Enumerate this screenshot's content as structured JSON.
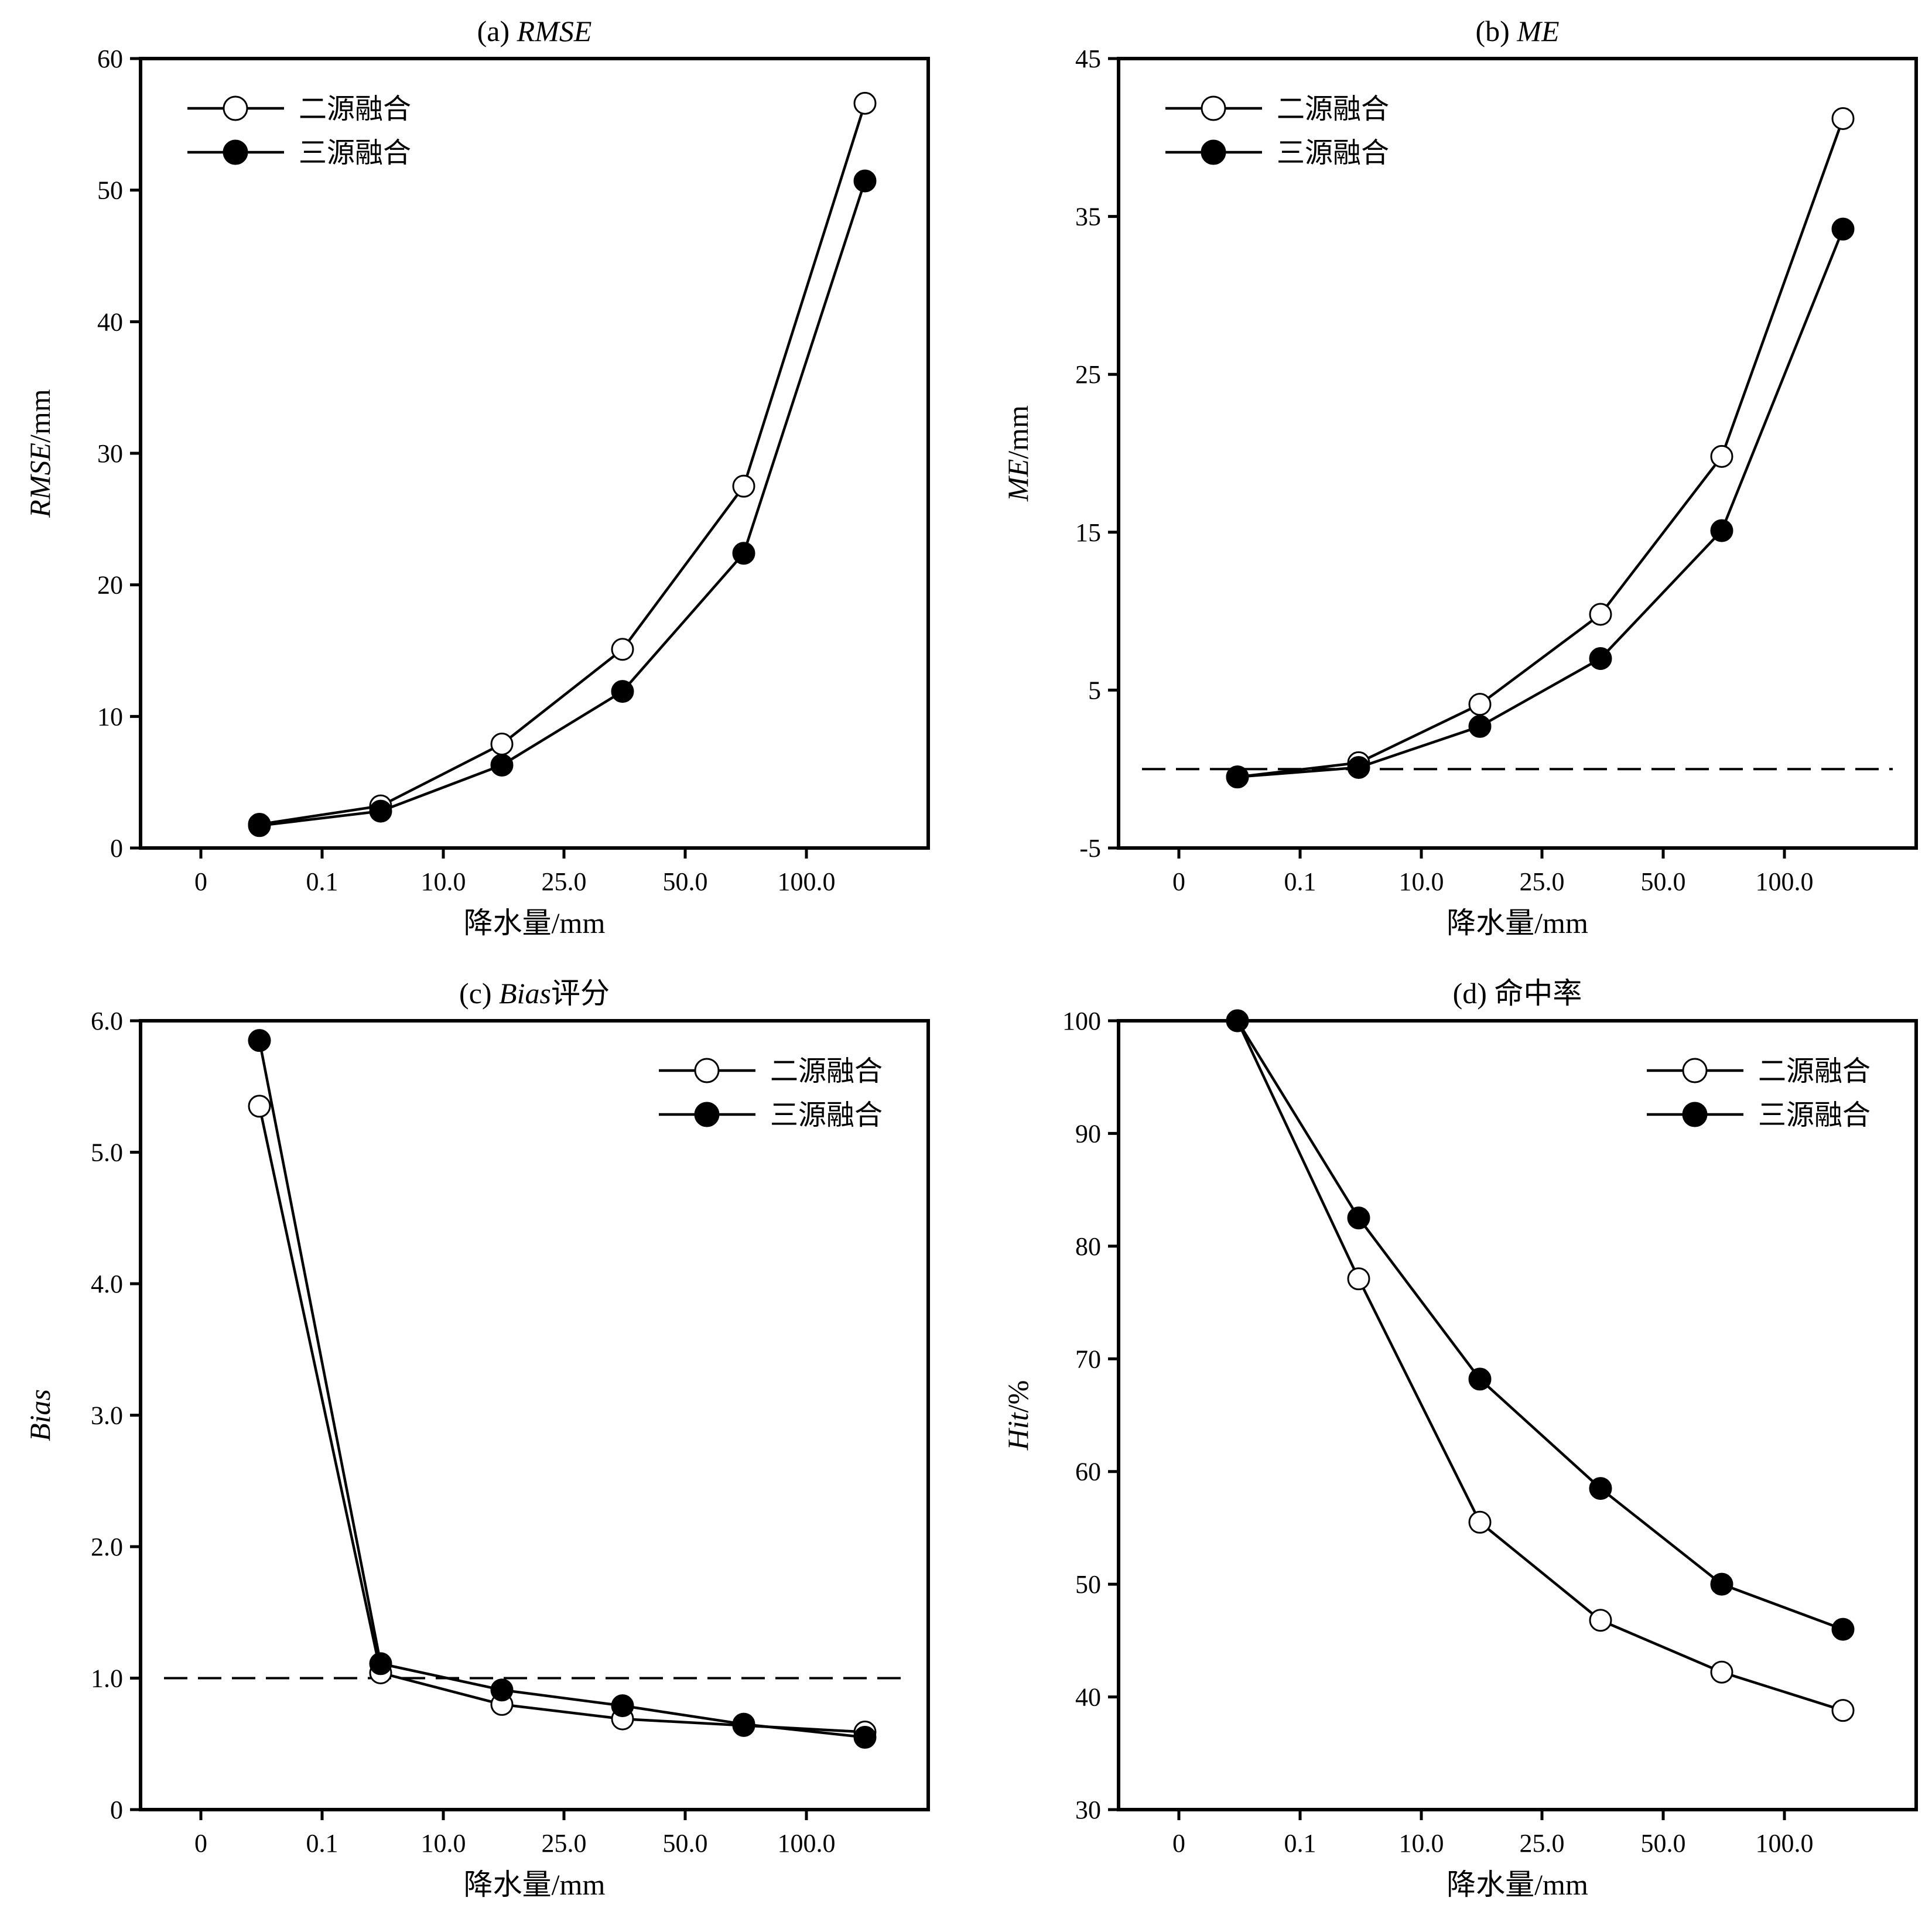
{
  "chart_data": [
    {
      "type": "line",
      "title": "(a) RMSE",
      "title_prefix": "(a) ",
      "title_italic": "RMSE",
      "title_suffix": "",
      "ylabel_italic": "RMSE",
      "ylabel_suffix": "/mm",
      "xlabel": "降水量/mm",
      "x_ticks": [
        "0",
        "0.1",
        "10.0",
        "25.0",
        "50.0",
        "100.0"
      ],
      "ylim": [
        0,
        60
      ],
      "y_ticks": [
        0,
        10,
        20,
        30,
        40,
        50,
        60
      ],
      "y_tick_labels": [
        "0",
        "10",
        "20",
        "30",
        "40",
        "50",
        "60"
      ],
      "legend_position": "top-left",
      "reference_line": null,
      "series": [
        {
          "name": "二源融合",
          "marker": "open-circle",
          "values": [
            1.8,
            3.2,
            7.9,
            15.1,
            27.5,
            56.6
          ]
        },
        {
          "name": "三源融合",
          "marker": "filled-circle",
          "values": [
            1.7,
            2.8,
            6.3,
            11.9,
            22.4,
            50.7
          ]
        }
      ]
    },
    {
      "type": "line",
      "title": "(b) ME",
      "title_prefix": "(b) ",
      "title_italic": "ME",
      "title_suffix": "",
      "ylabel_italic": "ME",
      "ylabel_suffix": "/mm",
      "xlabel": "降水量/mm",
      "x_ticks": [
        "0",
        "0.1",
        "10.0",
        "25.0",
        "50.0",
        "100.0"
      ],
      "ylim": [
        -5,
        45
      ],
      "y_ticks": [
        -5,
        5,
        15,
        25,
        35,
        45
      ],
      "y_tick_labels": [
        "-5",
        "5",
        "15",
        "25",
        "35",
        "45"
      ],
      "legend_position": "top-left",
      "reference_line": 0,
      "series": [
        {
          "name": "二源融合",
          "marker": "open-circle",
          "values": [
            -0.5,
            0.4,
            4.1,
            9.8,
            19.8,
            41.2
          ]
        },
        {
          "name": "三源融合",
          "marker": "filled-circle",
          "values": [
            -0.5,
            0.1,
            2.7,
            7.0,
            15.1,
            34.2
          ]
        }
      ]
    },
    {
      "type": "line",
      "title": "(c) Bias评分",
      "title_prefix": "(c) ",
      "title_italic": "Bias",
      "title_suffix": "评分",
      "ylabel_italic": "Bias",
      "ylabel_suffix": "",
      "xlabel": "降水量/mm",
      "x_ticks": [
        "0",
        "0.1",
        "10.0",
        "25.0",
        "50.0",
        "100.0"
      ],
      "ylim": [
        0,
        6
      ],
      "y_ticks": [
        0,
        1,
        2,
        3,
        4,
        5,
        6
      ],
      "y_tick_labels": [
        "0",
        "1.0",
        "2.0",
        "3.0",
        "4.0",
        "5.0",
        "6.0"
      ],
      "legend_position": "top-right",
      "reference_line": 1.0,
      "series": [
        {
          "name": "二源融合",
          "marker": "open-circle",
          "values": [
            5.35,
            1.04,
            0.8,
            0.69,
            0.64,
            0.59
          ]
        },
        {
          "name": "三源融合",
          "marker": "filled-circle",
          "values": [
            5.85,
            1.11,
            0.91,
            0.79,
            0.65,
            0.55
          ]
        }
      ]
    },
    {
      "type": "line",
      "title": "(d) 命中率",
      "title_prefix": "(d) ",
      "title_italic": "",
      "title_suffix": "命中率",
      "ylabel_italic": "Hit",
      "ylabel_suffix": "/%",
      "xlabel": "降水量/mm",
      "x_ticks": [
        "0",
        "0.1",
        "10.0",
        "25.0",
        "50.0",
        "100.0"
      ],
      "ylim": [
        30,
        100
      ],
      "y_ticks": [
        30,
        40,
        50,
        60,
        70,
        80,
        90,
        100
      ],
      "y_tick_labels": [
        "30",
        "40",
        "50",
        "60",
        "70",
        "80",
        "90",
        "100"
      ],
      "legend_position": "top-right",
      "reference_line": null,
      "series": [
        {
          "name": "二源融合",
          "marker": "open-circle",
          "values": [
            100,
            77.1,
            55.5,
            46.8,
            42.2,
            38.8
          ]
        },
        {
          "name": "三源融合",
          "marker": "filled-circle",
          "values": [
            100,
            82.5,
            68.2,
            58.5,
            50.0,
            46.0
          ]
        }
      ]
    }
  ]
}
